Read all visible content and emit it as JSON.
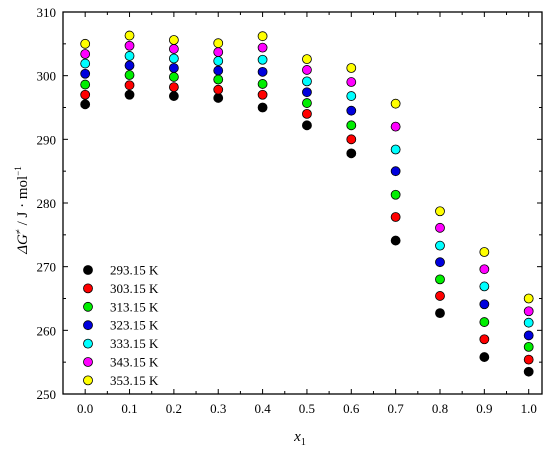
{
  "chart_data": {
    "type": "scatter",
    "title": "",
    "xlabel_main": "x",
    "xlabel_sub": "1",
    "ylabel": "ΔG≠ / J · mol−1",
    "ylabel_symbol": "ΔG",
    "ylabel_sup": "≠",
    "ylabel_rest": " / J · mol",
    "ylabel_exp": "−1",
    "xlim": [
      -0.05,
      1.03
    ],
    "ylim": [
      250,
      310
    ],
    "x_ticks": [
      0.0,
      0.1,
      0.2,
      0.3,
      0.4,
      0.5,
      0.6,
      0.7,
      0.8,
      0.9,
      1.0
    ],
    "x_tick_labels": [
      "0.0",
      "0.1",
      "0.2",
      "0.3",
      "0.4",
      "0.5",
      "0.6",
      "0.7",
      "0.8",
      "0.9",
      "1.0"
    ],
    "y_ticks": [
      250,
      260,
      270,
      280,
      290,
      300,
      310
    ],
    "y_tick_labels": [
      "250",
      "260",
      "270",
      "280",
      "290",
      "300",
      "310"
    ],
    "grid": false,
    "legend_position": "bottom-left",
    "x": [
      0.0,
      0.1,
      0.2,
      0.3,
      0.4,
      0.5,
      0.6,
      0.7,
      0.8,
      0.9,
      1.0
    ],
    "series": [
      {
        "name": "293.15 K",
        "color": "#000000",
        "values": [
          295.5,
          297.0,
          296.8,
          296.5,
          295.0,
          292.2,
          287.8,
          274.1,
          262.7,
          255.8,
          253.5
        ]
      },
      {
        "name": "303.15 K",
        "color": "#ff0000",
        "values": [
          297.0,
          298.5,
          298.2,
          297.8,
          297.0,
          294.0,
          290.0,
          277.8,
          265.4,
          258.6,
          255.4
        ]
      },
      {
        "name": "313.15 K",
        "color": "#00ee00",
        "values": [
          298.6,
          300.1,
          299.8,
          299.4,
          298.7,
          295.7,
          292.2,
          281.3,
          268.0,
          261.3,
          257.4
        ]
      },
      {
        "name": "323.15 K",
        "color": "#0000dd",
        "values": [
          300.3,
          301.6,
          301.2,
          300.8,
          300.6,
          297.4,
          294.5,
          285.0,
          270.7,
          264.1,
          259.2
        ]
      },
      {
        "name": "333.15 K",
        "color": "#00ffff",
        "values": [
          301.9,
          303.1,
          302.7,
          302.3,
          302.5,
          299.1,
          296.8,
          288.4,
          273.3,
          266.9,
          261.2
        ]
      },
      {
        "name": "343.15 K",
        "color": "#ff00ff",
        "values": [
          303.4,
          304.7,
          304.2,
          303.7,
          304.4,
          300.9,
          299.0,
          292.0,
          276.1,
          269.6,
          263.0
        ]
      },
      {
        "name": "353.15 K",
        "color": "#ffff00",
        "values": [
          305.0,
          306.3,
          305.6,
          305.1,
          306.2,
          302.6,
          301.2,
          295.6,
          278.7,
          272.3,
          265.0
        ]
      }
    ]
  }
}
